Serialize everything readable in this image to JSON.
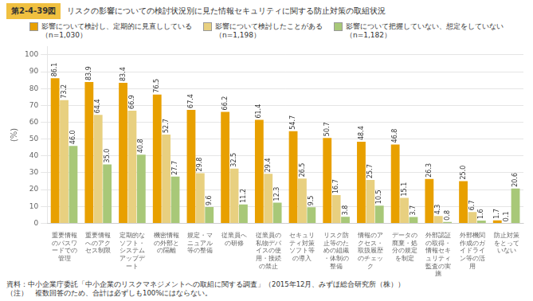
{
  "chart_data": {
    "type": "bar",
    "title": "リスクの影響についての検討状況別に見た情報セキュリティに関する防止対策の取組状況",
    "annotations": [
      "第2-4-39図",
      "資料：中小企業庁委託「中小企業のリスクマネジメントへの取組に関する調査」（2015年12月、みずほ総合研究所（株））",
      "（注）　複数回答のため、合計は必ずしも100%にはならない。"
    ],
    "y_label": "(%)",
    "categories": [
      "重要情報\nのパスワ\nードでの\n管理",
      "重要情報\nへのアク\nセス制限",
      "定期的な\nソフト・\nシステム\nアップデ\nート",
      "機密情報\nの外部と\nの隔離",
      "規定・マ\nニュアル\n等の整備",
      "従業員へ\nの研修",
      "従業員の\n私物デバ\nイスの使\n用・接続\nの禁止",
      "セキュリ\nティ対策\nソフト等\nの導入",
      "リスク防\n止等のた\nめの組織\n・体制の\n整備",
      "情報のア\nクセス・\n取扱履歴\nのチェッ\nク",
      "データの\n廃棄・処\n分の規定\nを制定",
      "外部認証\nの取得・\n情報セキ\nュリティ\n監査の実\n施",
      "外部機関\n作成のガ\nイドライ\nン等の活\n用",
      "防止対策\nをとって\nいない"
    ],
    "series": [
      {
        "name": "影響について検討し、定期的に見直ししている\n（n=1,030）",
        "color": "#E8A000",
        "values": [
          86.1,
          83.9,
          83.4,
          76.5,
          67.4,
          66.2,
          61.4,
          54.7,
          50.7,
          48.4,
          46.8,
          26.3,
          25.0,
          1.7
        ],
        "value_labels": [
          "86.1",
          "83.9",
          "83.4",
          "76.5",
          "67.4",
          "66.2",
          "61.4",
          "54.7",
          "50.7",
          "48.4",
          "46.8",
          "26.3",
          "25.0",
          "1.7"
        ]
      },
      {
        "name": "影響について検討したことがある\n（n=1,198）",
        "color": "#E8D080",
        "values": [
          73.2,
          64.4,
          66.9,
          52.7,
          29.8,
          32.5,
          29.4,
          26.5,
          16.7,
          25.7,
          15.1,
          4.3,
          6.7,
          0.1
        ],
        "value_labels": [
          "73.2",
          "64.4",
          "66.9",
          "52.7",
          "29.8",
          "32.5",
          "29.4",
          "26.5",
          "16.7",
          "25.7",
          "15.1",
          "4.3",
          "6.7",
          "0.1"
        ]
      },
      {
        "name": "影響について把握していない、想定をしていない\n（n=1,182）",
        "color": "#A8C878",
        "values": [
          46.0,
          35.0,
          40.8,
          27.7,
          9.6,
          11.2,
          12.3,
          9.5,
          3.8,
          10.5,
          3.7,
          0.8,
          1.6,
          20.6
        ],
        "value_labels": [
          "46.0",
          "35.0",
          "40.8",
          "27.7",
          "9.6",
          "11.2",
          "12.3",
          "9.5",
          "3.8",
          "10.5",
          "3.7",
          "0.8",
          "1.6",
          "20.6"
        ]
      }
    ],
    "ylim": [
      0,
      105
    ],
    "yticks": [
      0,
      10,
      20,
      30,
      40,
      50,
      60,
      70,
      80,
      90,
      100
    ],
    "grid": true,
    "legend": "top",
    "data_labels": true
  }
}
